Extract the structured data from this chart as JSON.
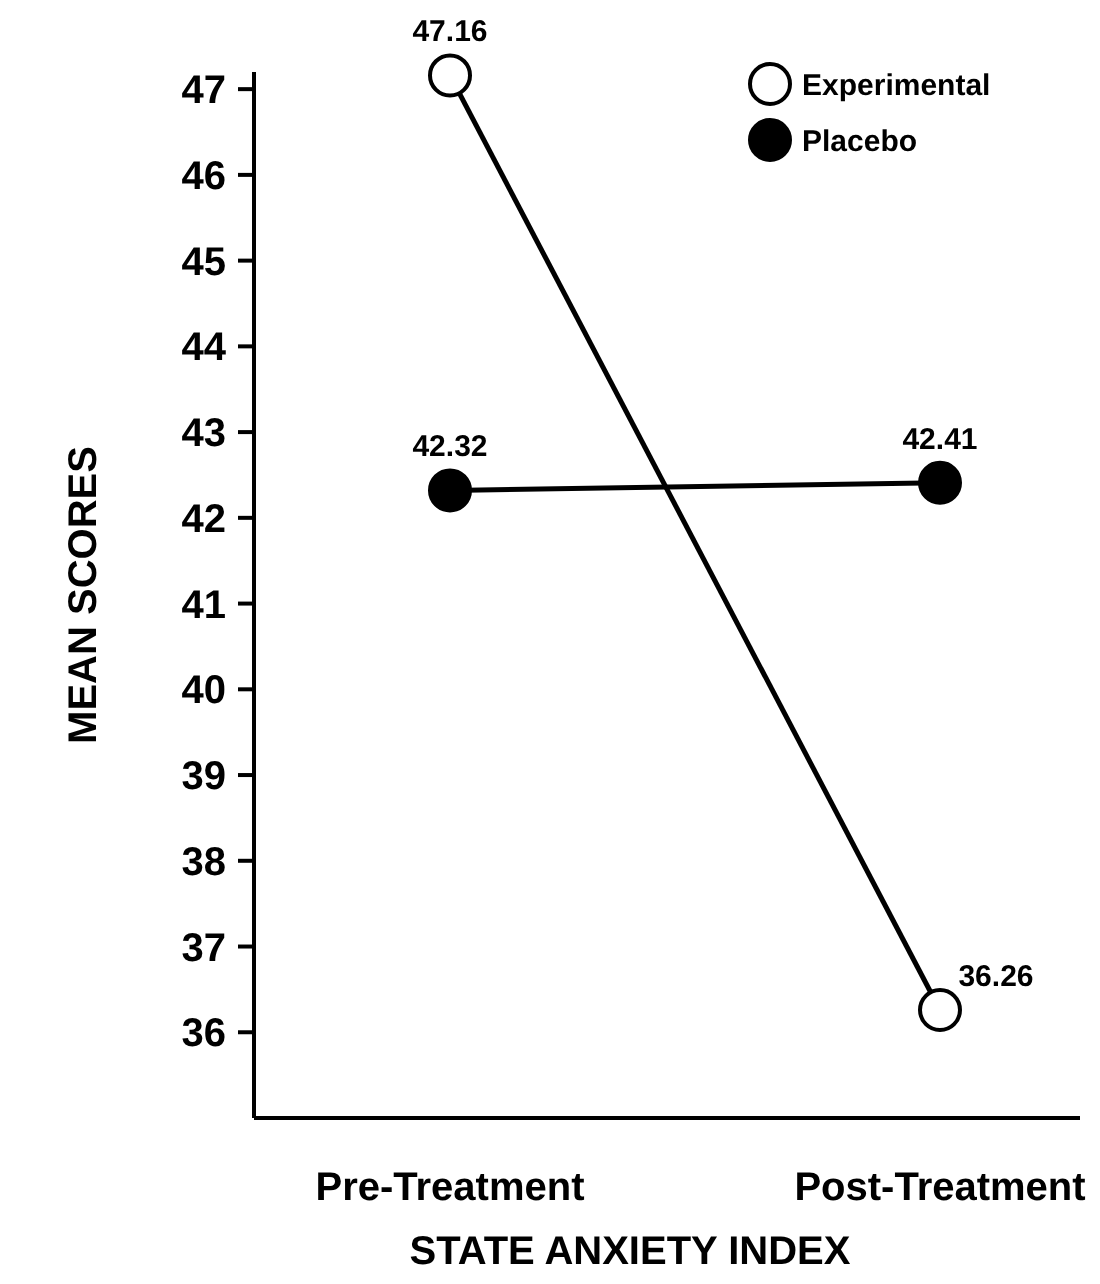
{
  "chart_data": {
    "type": "line",
    "xlabel": "STATE ANXIETY INDEX",
    "ylabel": "MEAN SCORES",
    "categories": [
      "Pre-Treatment",
      "Post-Treatment"
    ],
    "series": [
      {
        "name": "Experimental",
        "color": "#ffffff",
        "values": [
          47.16,
          36.26
        ]
      },
      {
        "name": "Placebo",
        "color": "#000000",
        "values": [
          42.32,
          42.41
        ]
      }
    ],
    "ylim": [
      35,
      47.2
    ],
    "yticks": [
      36,
      37,
      38,
      39,
      40,
      41,
      42,
      43,
      44,
      45,
      46,
      47
    ],
    "grid": false,
    "legend": "top right",
    "marker": "circle",
    "line_style": "solid",
    "data_labels": true
  }
}
